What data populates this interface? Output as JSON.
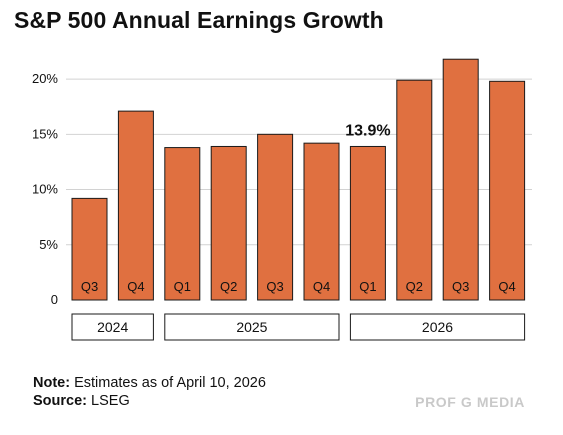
{
  "header": {
    "title": "S&P 500 Annual Earnings Growth"
  },
  "chart_data": {
    "type": "bar",
    "title": "S&P 500 Annual Earnings Growth",
    "categories": [
      "Q3",
      "Q4",
      "Q1",
      "Q2",
      "Q3",
      "Q4",
      "Q1",
      "Q2",
      "Q3",
      "Q4"
    ],
    "years": [
      {
        "label": "2024",
        "start": 0,
        "end": 1
      },
      {
        "label": "2025",
        "start": 2,
        "end": 5
      },
      {
        "label": "2026",
        "start": 6,
        "end": 9
      }
    ],
    "values": [
      9.2,
      17.1,
      13.8,
      13.9,
      15.0,
      14.2,
      13.9,
      19.9,
      21.8,
      19.8
    ],
    "ylim": [
      0,
      22
    ],
    "yticks": [
      0,
      5,
      10,
      15,
      20
    ],
    "ytick_labels": [
      "0",
      "5%",
      "10%",
      "15%",
      "20%"
    ],
    "annotation": {
      "index": 6,
      "text": "13.9%"
    },
    "bar_color": "#e07040",
    "grid": true,
    "xlabel": "",
    "ylabel": ""
  },
  "footer": {
    "note_label": "Note:",
    "note_text": "Estimates as of April 10, 2026",
    "source_label": "Source:",
    "source_text": "LSEG",
    "brand": "PROF G MEDIA"
  }
}
